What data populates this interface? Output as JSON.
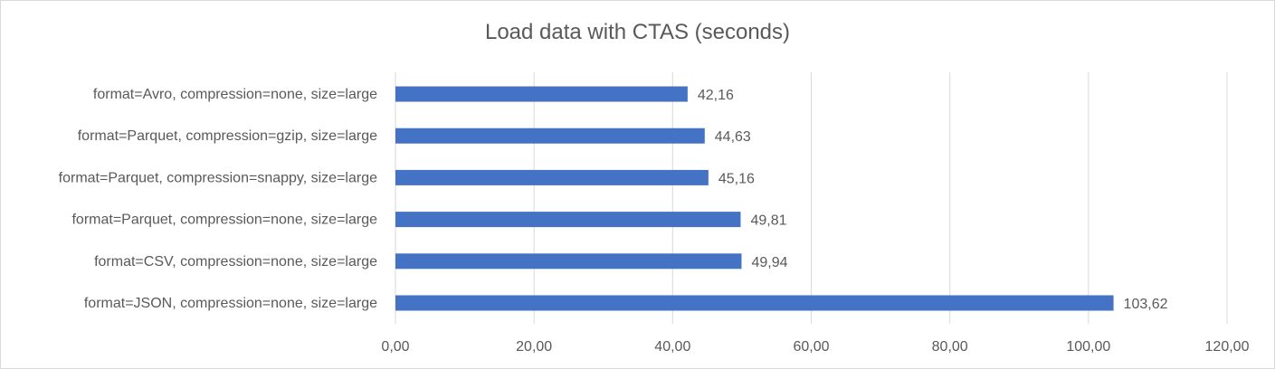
{
  "chart_data": {
    "type": "bar",
    "orientation": "horizontal",
    "title": "Load data with CTAS (seconds)",
    "xlabel": "",
    "ylabel": "",
    "categories": [
      "format=Avro, compression=none, size=large",
      "format=Parquet, compression=gzip, size=large",
      "format=Parquet, compression=snappy, size=large",
      "format=Parquet, compression=none, size=large",
      "format=CSV, compression=none, size=large",
      "format=JSON, compression=none, size=large"
    ],
    "values": [
      42.16,
      44.63,
      45.16,
      49.81,
      49.94,
      103.62
    ],
    "value_labels": [
      "42,16",
      "44,63",
      "45,16",
      "49,81",
      "49,94",
      "103,62"
    ],
    "xlim": [
      0,
      120
    ],
    "x_ticks": [
      "0,00",
      "20,00",
      "40,00",
      "60,00",
      "80,00",
      "100,00",
      "120,00"
    ],
    "grid": "vertical",
    "legend": "none",
    "bar_color": "#4472C4",
    "grid_color": "#d9d9d9"
  }
}
